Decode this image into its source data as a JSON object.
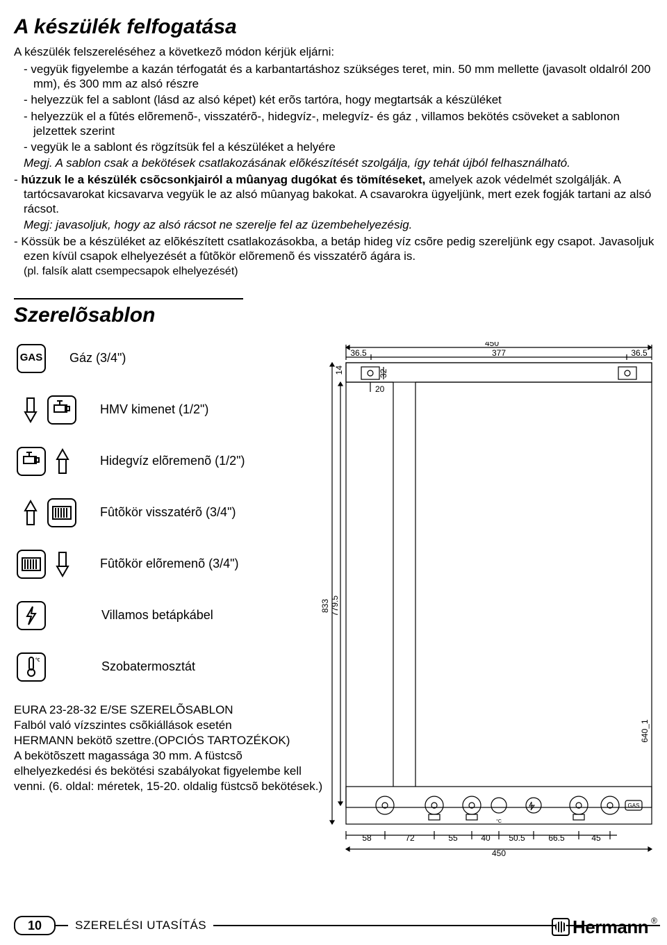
{
  "title1": "A készülék felfogatása",
  "intro": "A készülék felszereléséhez a következõ módon kérjük eljárni:",
  "b1": "vegyük figyelembe a kazán térfogatát és a karbantartáshoz szükséges teret, min. 50 mm mellette (javasolt oldalról 200 mm), és 300 mm az alsó részre",
  "b2": "helyezzük fel a sablont (lásd az alsó képet) két erõs tartóra,  hogy megtartsák a készüléket",
  "b3": "helyezzük el a fûtés elõremenõ-, visszatérõ-, hidegvíz-, melegvíz- és gáz , villamos bekötés csöveket a sablonon  jelzettek szerint",
  "b4": "vegyük le a sablont és rögzítsük fel a készüléket a helyére",
  "note1": "Megj. A sablon csak a bekötések csatlakozásának elõkészítését szolgálja, így tehát újból felhasználható.",
  "p5_bold": "húzzuk le a készülék csõcsonkjairól a mûanyag dugókat és tömítéseket,",
  "p5_rest": " amelyek azok védelmét szolgálják. A tartócsavarokat kicsavarva vegyük le az alsó mûanyag bakokat. A csavarokra ügyeljünk, mert ezek fogják tartani az alsó rácsot.",
  "note2": "Megj: javasoljuk, hogy az alsó rácsot ne szerelje fel az üzembehelyezésig.",
  "p6": "Kössük be a készüléket az elõkészített csatlakozásokba, a betáp hideg víz csõre pedig szereljünk egy csapot. Javasoljuk ezen kívül csapok elhelyezését a fûtõkör elõremenõ és visszatérõ ágára is.",
  "p6_small": "(pl. falsík alatt csempecsapok elhelyezését)",
  "title2": "Szerelõsablon",
  "legend": {
    "gas": "Gáz (3/4\")",
    "hmv": "HMV kimenet  (1/2\")",
    "hideg": "Hidegvíz elõremenõ (1/2\")",
    "vissza": "Fûtõkör visszatérõ  (3/4\")",
    "elore": "Fûtõkör elõremenõ  (3/4\")",
    "villamos": "Villamos betápkábel",
    "szoba": "Szobatermosztát"
  },
  "bottom": "EURA 23-28-32 E/SE SZERELÕSABLON\nFalból való vízszintes csõkiállások esetén\n HERMANN bekötõ szettre.(OPCIÓS TARTOZÉKOK)\nA bekötõszett magassága 30 mm. A füstcsõ\nelhelyezkedési és bekötési szabályokat figyelembe kell\nvenni. (6. oldal: méretek, 15-20. oldalig füstcsõ bekötések.)",
  "page_number": "10",
  "footer_label": "SZERELÉSI UTASÍTÁS",
  "brand": "Hermann",
  "gas_label": "GAS",
  "diagram": {
    "dims_top": {
      "w450": "450",
      "l365": "36.5",
      "m377": "377",
      "r365": "36.5",
      "v14": "14",
      "v32": "32",
      "v20": "20"
    },
    "dims_side": {
      "h833": "833",
      "h7795": "779.5",
      "h6401": "640_1"
    },
    "dims_bottom": {
      "d58": "58",
      "d72": "72",
      "d55": "55",
      "d40": "40",
      "d505": "50.5",
      "d665": "66.5",
      "d45": "45",
      "w450b": "450"
    },
    "gas_small": "GAS"
  }
}
